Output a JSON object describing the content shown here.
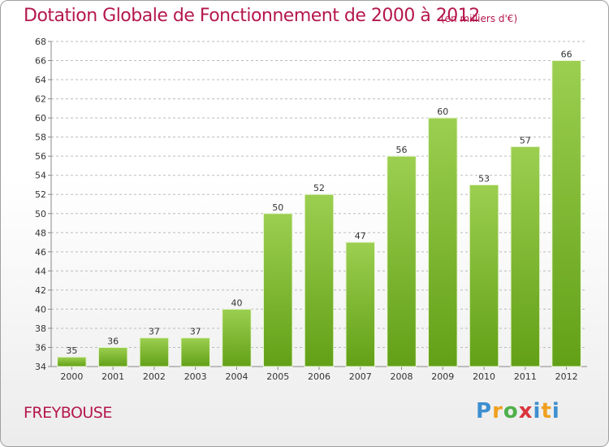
{
  "header": {
    "title": "Dotation Globale de Fonctionnement de 2000 à 2012",
    "subtitle": "(en milliers d'€)"
  },
  "footer": {
    "place": "FREYBOUSE",
    "logo": "Proxiti"
  },
  "colors": {
    "bar_top": "#9ccf50",
    "bar_bottom": "#62a017",
    "bar_edge": "#e9f5d6",
    "grid": "#bbbbbb",
    "title": "#b5174e"
  },
  "chart_data": {
    "type": "bar",
    "categories": [
      "2000",
      "2001",
      "2002",
      "2003",
      "2004",
      "2005",
      "2006",
      "2007",
      "2008",
      "2009",
      "2010",
      "2011",
      "2012"
    ],
    "values": [
      35,
      36,
      37,
      37,
      40,
      50,
      52,
      47,
      56,
      60,
      53,
      57,
      66
    ],
    "ylim": [
      34,
      68
    ],
    "ytick_step": 2,
    "grid": "horizontal dashed",
    "data_labels": true
  }
}
